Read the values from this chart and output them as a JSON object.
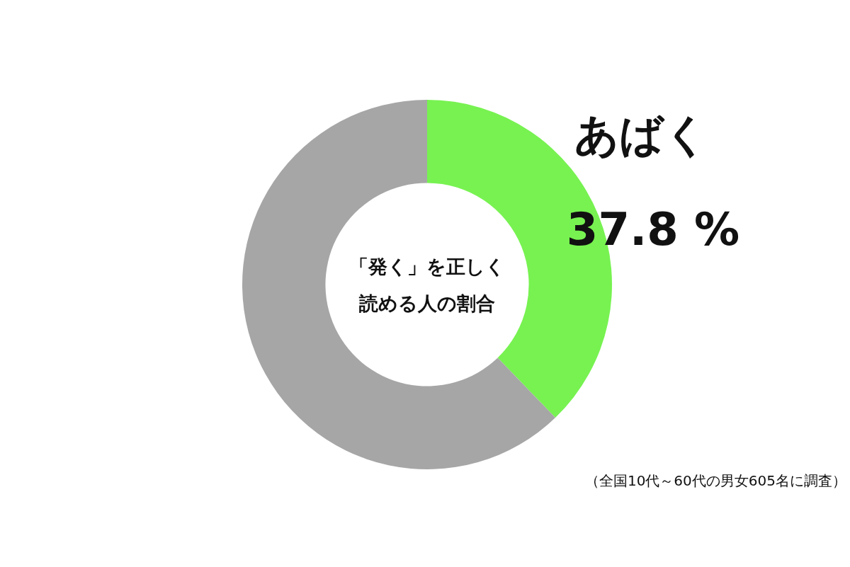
{
  "chart_data": {
    "type": "donut",
    "title": "「発く」を正しく読める人の割合",
    "categories": [
      "あばく",
      null
    ],
    "values": [
      37.8,
      62.2
    ],
    "colors": [
      "#77f251",
      "#a6a6a6"
    ],
    "value_labels": [
      "37.8 %",
      null
    ],
    "annotations": [
      "（全国10代～60代の男女605名に調査）"
    ]
  }
}
